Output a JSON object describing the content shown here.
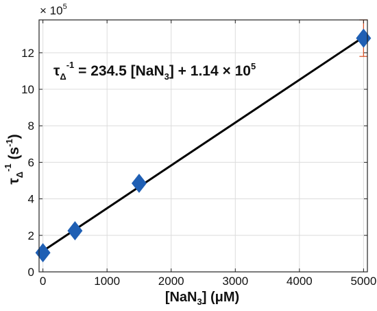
{
  "chart_data": {
    "type": "scatter",
    "xlabel": {
      "prefix": "[NaN",
      "sub": "3",
      "suffix": "] (μM)"
    },
    "ylabel": {
      "base": "τ",
      "sub": "Δ",
      "sup": "-1",
      "unit_open": " (s",
      "unit_sup": "-1",
      "unit_close": ")"
    },
    "xlim": [
      -60,
      5060
    ],
    "ylim": [
      0,
      13.8
    ],
    "y_multiplier": {
      "base": "× 10",
      "exp": "5"
    },
    "x_ticks": [
      0,
      1000,
      2000,
      3000,
      4000,
      5000
    ],
    "x_tick_labels": [
      "0",
      "1000",
      "2000",
      "3000",
      "4000",
      "5000"
    ],
    "y_ticks": [
      0,
      2,
      4,
      6,
      8,
      10,
      12
    ],
    "y_tick_labels": [
      "0",
      "2",
      "4",
      "6",
      "8",
      "10",
      "12"
    ],
    "grid": true,
    "series": [
      {
        "marker": "diamond",
        "color": "#1f5fb4",
        "x": [
          0,
          500,
          1500,
          5000
        ],
        "y": [
          1.05,
          2.25,
          4.85,
          12.8
        ],
        "y_err": [
          0,
          0,
          0,
          1.0
        ],
        "err_color": "#d9542b"
      }
    ],
    "fit_line": {
      "slope": 234.5,
      "intercept": 114000,
      "x_range": [
        -40,
        5000
      ],
      "color": "#000000"
    },
    "annotation": {
      "tau": "τ",
      "sub": "Δ",
      "sup": "-1",
      "eq": " = 234.5 [NaN",
      "n_sub": "3",
      "rest": "] + 1.14 × 10",
      "exp": "5"
    }
  }
}
